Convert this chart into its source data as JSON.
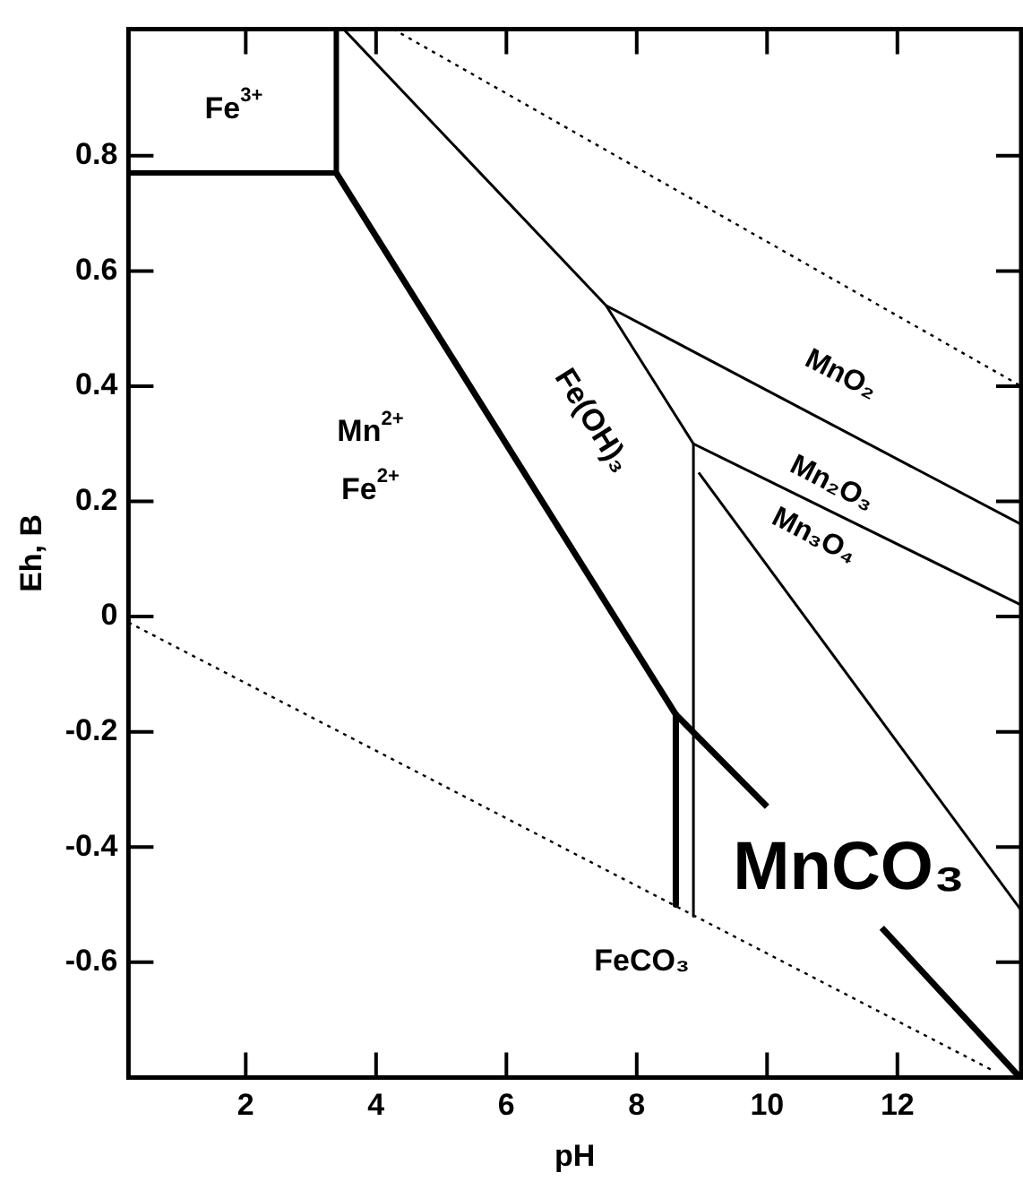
{
  "chart_data": {
    "type": "line",
    "xlabel": "pH",
    "ylabel": "Eh, B",
    "xlim": [
      0.2,
      13.9
    ],
    "ylim": [
      -0.8,
      1.02
    ],
    "xticks": [
      2,
      4,
      6,
      8,
      10,
      12
    ],
    "yticks": [
      -0.6,
      -0.4,
      -0.2,
      0,
      0.2,
      0.4,
      0.6,
      0.8
    ],
    "grid": false,
    "legend": false,
    "marker": "none",
    "series": [
      {
        "color": "#000000",
        "x": [
          0.2,
          3.39
        ],
        "values": [
          0.77,
          0.77
        ]
      },
      {
        "color": "#000000",
        "x": [
          3.39,
          3.39
        ],
        "values": [
          0.77,
          1.02
        ]
      },
      {
        "color": "#000000",
        "x": [
          3.39,
          8.6,
          10.0
        ],
        "values": [
          0.77,
          -0.17,
          -0.33
        ]
      },
      {
        "color": "#000000",
        "x": [
          8.6,
          8.6
        ],
        "values": [
          -0.17,
          -0.5
        ]
      },
      {
        "color": "#000000",
        "x": [
          8.87,
          8.87
        ],
        "values": [
          0.3,
          -0.52
        ]
      },
      {
        "color": "#000000",
        "x": [
          3.5,
          7.53,
          8.87
        ],
        "values": [
          1.02,
          0.54,
          0.3
        ]
      },
      {
        "color": "#000000",
        "x": [
          7.53,
          13.9
        ],
        "values": [
          0.54,
          0.16
        ]
      },
      {
        "color": "#000000",
        "x": [
          8.87,
          13.9
        ],
        "values": [
          0.3,
          0.02
        ]
      },
      {
        "color": "#000000",
        "x": [
          8.95,
          13.9
        ],
        "values": [
          0.25,
          -0.51
        ]
      },
      {
        "color": "#000000",
        "x": [
          11.76,
          13.88
        ],
        "values": [
          -0.54,
          -0.8
        ]
      },
      {
        "color": "#000000",
        "x": [
          4.26,
          13.9
        ],
        "values": [
          1.02,
          0.4
        ],
        "line_style": "dotted"
      },
      {
        "color": "#000000",
        "x": [
          0.2,
          13.5
        ],
        "values": [
          -0.01,
          -0.79
        ],
        "line_style": "dotted"
      }
    ],
    "annotations": [
      "Fe$^{3+}$",
      "Mn$^{2+}$",
      "Fe$^{2+}$",
      "Fe(OH)₃",
      "MnO₂",
      "Mn₂O₃",
      "Mn₃O₄",
      "MnCO₃",
      "FeCO₃"
    ]
  }
}
